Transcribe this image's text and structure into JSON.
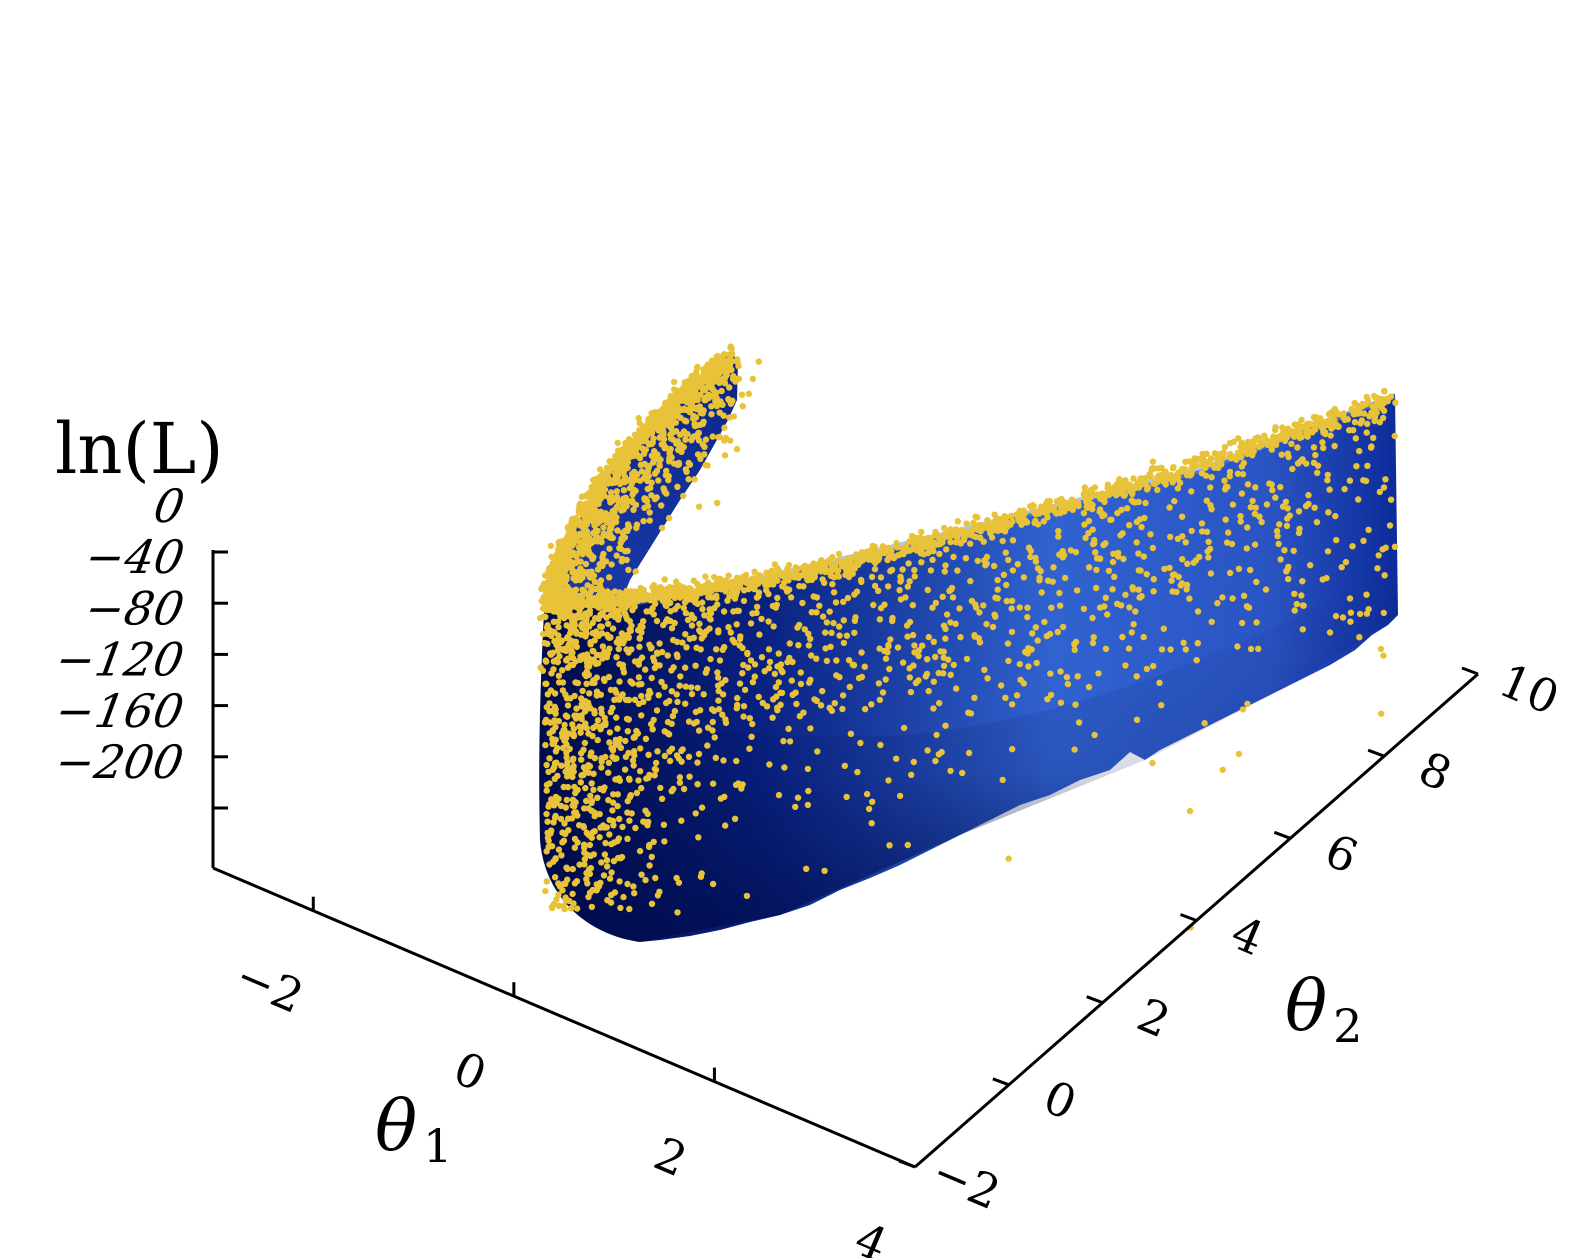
{
  "chart_data": {
    "type": "scatter",
    "subtype": "3d-surface-with-scatter",
    "title": "",
    "xlabel": "θ₁",
    "ylabel": "θ₂",
    "zlabel": "ln(L)",
    "x_axis": {
      "label": "θ",
      "label_sub": "1",
      "ticks": [
        -2,
        0,
        2,
        4
      ],
      "tick_labels": [
        "−2",
        "0",
        "2",
        "4"
      ],
      "range": [
        -3,
        4
      ]
    },
    "y_axis": {
      "label": "θ",
      "label_sub": "2",
      "ticks": [
        -2,
        0,
        2,
        4,
        6,
        8,
        10
      ],
      "tick_labels": [
        "−2",
        "0",
        "2",
        "4",
        "6",
        "8",
        "10"
      ],
      "range": [
        -2,
        10
      ]
    },
    "z_axis": {
      "label": "ln(L)",
      "ticks": [
        0,
        -40,
        -80,
        -120,
        -160,
        -200
      ],
      "tick_labels": [
        "0",
        "−40",
        "−80",
        "−120",
        "−160",
        "−200"
      ],
      "range": [
        -240,
        0
      ]
    },
    "surface": {
      "description": "Rosenbrock-like banana log-likelihood surface",
      "colormap": [
        "#000b4a",
        "#0a1f86",
        "#2f5bcc",
        "#6fa0ee"
      ]
    },
    "series": [
      {
        "color": "#e8c33a",
        "kind": "scatter",
        "approx_count": 3500
      }
    ],
    "grid": false,
    "legend": "none"
  }
}
